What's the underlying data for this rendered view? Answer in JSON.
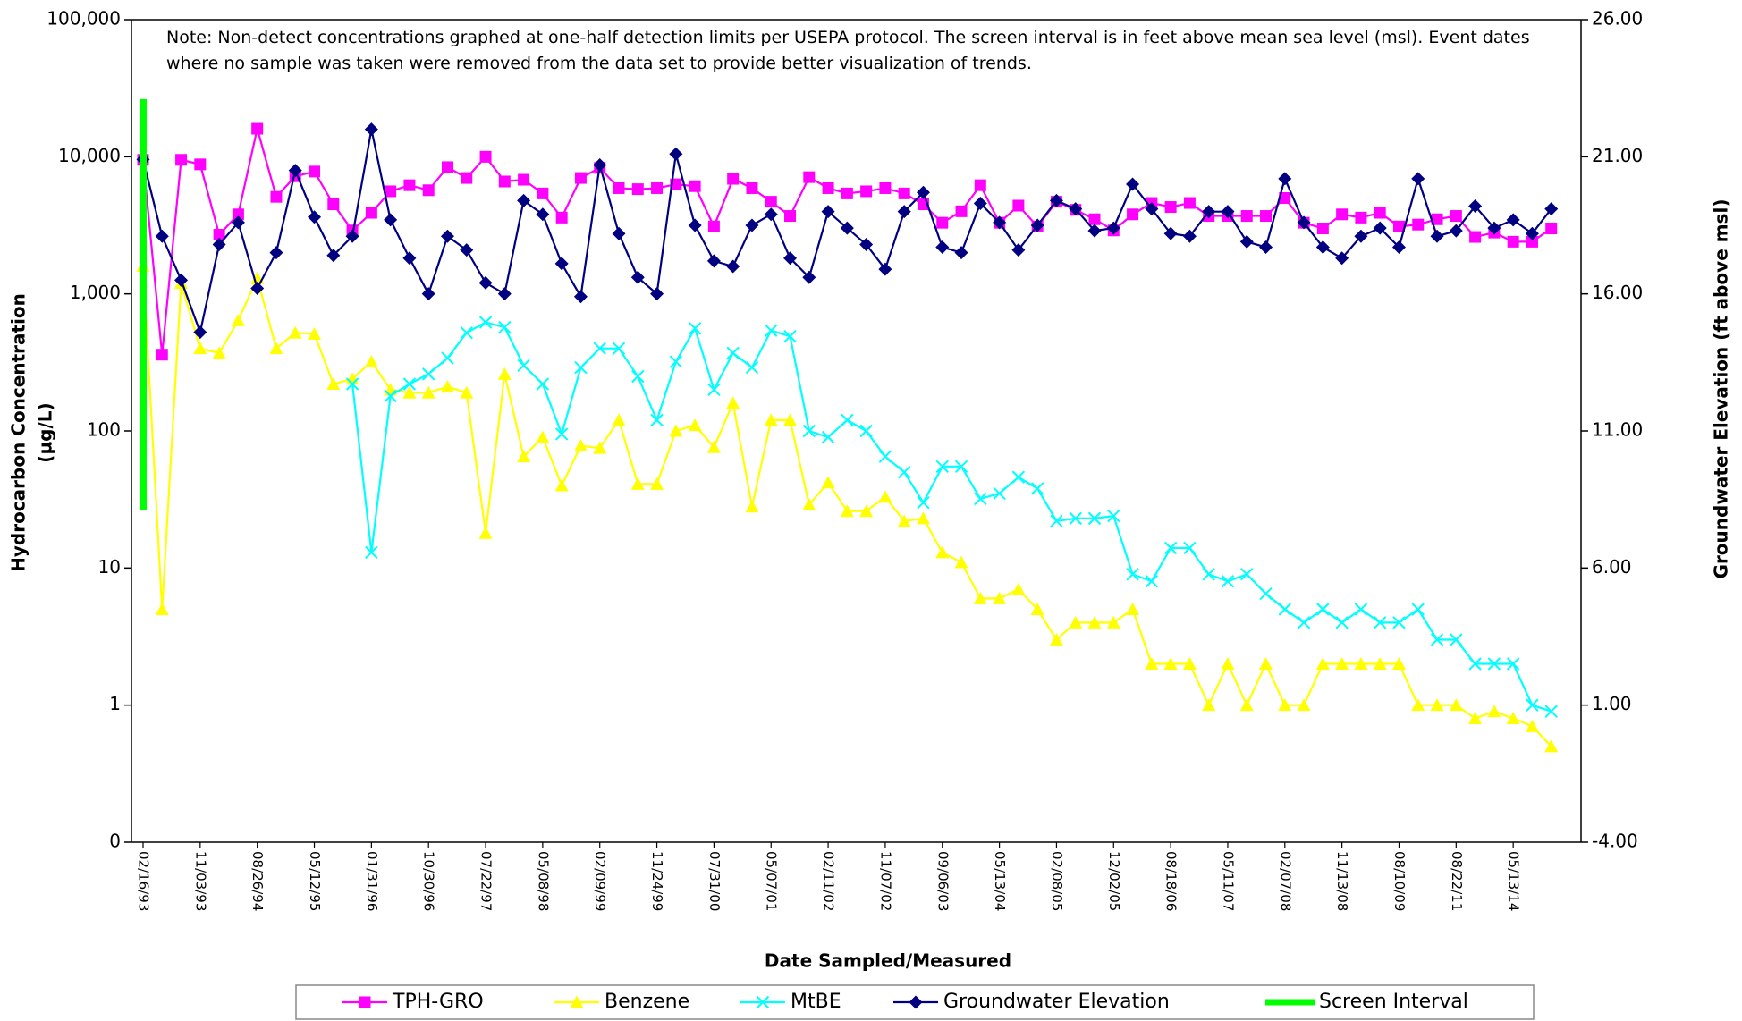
{
  "chart_data": {
    "type": "line",
    "note": "Note: Non-detect concentrations graphed at one-half detection limits per USEPA protocol. The screen interval is in feet above mean sea level (msl). Event dates where no sample was taken were removed from the data set to provide better visualization of trends.",
    "xlabel": "Date Sampled/Measured",
    "ylabel": [
      "Hydrocarbon Concentration",
      "(µg/L)"
    ],
    "y2label": "Groundwater Elevation (ft above msl)",
    "ylog": true,
    "grid": false,
    "ylim": [
      0.1,
      100000
    ],
    "yticks": [
      {
        "value": 0.1,
        "label": "0"
      },
      1,
      10,
      100,
      {
        "value": 1000,
        "label": "1,000"
      },
      {
        "value": 10000,
        "label": "10,000"
      },
      {
        "value": 100000,
        "label": "100,000"
      }
    ],
    "y2lim": [
      -4,
      26
    ],
    "y2ticks": [
      {
        "value": -4,
        "label": "-4.00"
      },
      {
        "value": 1,
        "label": "1.00"
      },
      {
        "value": 6,
        "label": "6.00"
      },
      {
        "value": 11,
        "label": "11.00"
      },
      {
        "value": 16,
        "label": "16.00"
      },
      {
        "value": 21,
        "label": "21.00"
      },
      {
        "value": 26,
        "label": "26.00"
      }
    ],
    "categories": [
      "02/16/93",
      null,
      null,
      "11/03/93",
      null,
      null,
      "08/26/94",
      null,
      null,
      "05/12/95",
      null,
      null,
      "01/31/96",
      null,
      null,
      "10/30/96",
      null,
      null,
      "07/22/97",
      null,
      null,
      "05/08/98",
      null,
      null,
      "02/09/99",
      null,
      null,
      "11/24/99",
      null,
      null,
      "07/31/00",
      null,
      null,
      "05/07/01",
      null,
      null,
      "02/11/02",
      null,
      null,
      "11/07/02",
      null,
      null,
      "09/06/03",
      null,
      null,
      "05/13/04",
      null,
      null,
      "02/08/05",
      null,
      null,
      "12/02/05",
      null,
      null,
      "08/18/06",
      null,
      null,
      "05/11/07",
      null,
      null,
      "02/07/08",
      null,
      null,
      "11/13/08",
      null,
      null,
      "08/10/09",
      null,
      null,
      "08/22/11",
      null,
      null,
      "05/13/14",
      null,
      null
    ],
    "series": [
      {
        "name": "TPH-GRO",
        "color": "#ff00ff",
        "marker": "square",
        "values": [
          9500,
          360,
          9500,
          8800,
          2700,
          3800,
          16000,
          5100,
          7200,
          7800,
          4500,
          2900,
          3900,
          5600,
          6200,
          5700,
          8400,
          7000,
          10000,
          6600,
          6800,
          5400,
          3600,
          7000,
          8300,
          5900,
          5800,
          5900,
          6300,
          6100,
          3100,
          6900,
          5900,
          4700,
          3700,
          7100,
          5900,
          5400,
          5600,
          5900,
          5400,
          4500,
          3300,
          4000,
          6200,
          3300,
          4400,
          3100,
          4700,
          4100,
          3500,
          2900,
          3800,
          4600,
          4300,
          4600,
          3700,
          3700,
          3700,
          3700,
          5000,
          3300,
          3000,
          3800,
          3600,
          3900,
          3100,
          3200,
          3500,
          3700,
          2600,
          2800,
          2400,
          2400,
          3000
        ]
      },
      {
        "name": "Benzene",
        "color": "#ffff00",
        "marker": "triangle",
        "values": [
          1600,
          5,
          1200,
          400,
          370,
          640,
          1300,
          400,
          520,
          510,
          220,
          240,
          320,
          200,
          190,
          190,
          210,
          190,
          18,
          260,
          65,
          90,
          40,
          78,
          75,
          120,
          41,
          41,
          100,
          110,
          76,
          160,
          28,
          120,
          120,
          29,
          42,
          26,
          26,
          33,
          22,
          23,
          13,
          11,
          6,
          6,
          7,
          5,
          3,
          4,
          4,
          4,
          5,
          2,
          2,
          2,
          1,
          2,
          1,
          2,
          1,
          1,
          2,
          2,
          2,
          2,
          2,
          1,
          1,
          1,
          0.8,
          0.9,
          0.8,
          0.7,
          0.5
        ]
      },
      {
        "name": "MtBE",
        "color": "#00ffff",
        "marker": "x",
        "values": [
          null,
          null,
          null,
          null,
          null,
          null,
          null,
          null,
          null,
          null,
          null,
          220,
          13,
          180,
          220,
          260,
          340,
          520,
          620,
          570,
          300,
          220,
          95,
          290,
          400,
          400,
          250,
          120,
          320,
          560,
          200,
          370,
          290,
          540,
          490,
          100,
          90,
          120,
          100,
          65,
          50,
          30,
          55,
          55,
          32,
          35,
          46,
          38,
          22,
          23,
          23,
          24,
          9,
          8,
          14,
          14,
          9,
          8,
          9,
          6.5,
          5,
          4,
          5,
          4,
          5,
          4,
          4,
          5,
          3,
          3,
          2,
          2,
          2,
          1,
          0.9
        ]
      },
      {
        "name": "Groundwater Elevation",
        "color": "#000080",
        "marker": "diamond",
        "axis": "y2",
        "values": [
          20.9,
          18.1,
          16.5,
          14.6,
          17.8,
          18.6,
          16.2,
          17.5,
          20.5,
          18.8,
          17.4,
          18.1,
          22,
          18.7,
          17.3,
          16,
          18.1,
          17.6,
          16.4,
          16,
          19.4,
          18.9,
          17.1,
          15.9,
          20.7,
          18.2,
          16.6,
          16,
          21.1,
          18.5,
          17.2,
          17,
          18.5,
          18.9,
          17.3,
          16.6,
          19,
          18.4,
          17.8,
          16.9,
          19,
          19.7,
          17.7,
          17.5,
          19.3,
          18.6,
          17.6,
          18.5,
          19.4,
          19.1,
          18.3,
          18.4,
          20,
          19.1,
          18.2,
          18.1,
          19,
          19,
          17.9,
          17.7,
          20.2,
          18.6,
          17.7,
          17.3,
          18.1,
          18.4,
          17.7,
          20.2,
          18.1,
          18.3,
          19.2,
          18.4,
          18.7,
          18.2,
          19.1
        ]
      },
      {
        "name": "Screen Interval",
        "color": "#00ff00",
        "marker": "range",
        "axis": "y2",
        "category": "02/16/93",
        "range": [
          8.1,
          23.1
        ]
      }
    ]
  }
}
